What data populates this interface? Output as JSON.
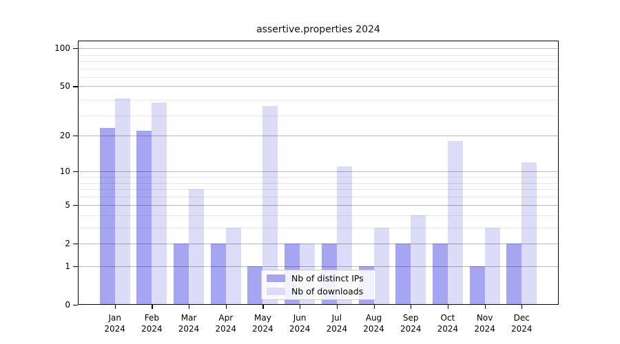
{
  "title": "assertive.properties 2024",
  "chart_data": {
    "type": "bar",
    "title": "assertive.properties 2024",
    "categories": [
      "Jan",
      "Feb",
      "Mar",
      "Apr",
      "May",
      "Jun",
      "Jul",
      "Aug",
      "Sep",
      "Oct",
      "Nov",
      "Dec"
    ],
    "year": "2024",
    "series": [
      {
        "name": "Nb of distinct IPs",
        "color": "#a5a5f2",
        "values": [
          23,
          22,
          2,
          2,
          1,
          2,
          2,
          1,
          2,
          2,
          1,
          2
        ]
      },
      {
        "name": "Nb of downloads",
        "color": "#dcdcf8",
        "values": [
          40,
          37,
          7,
          3,
          35,
          2,
          11,
          3,
          4,
          18,
          3,
          12
        ]
      }
    ],
    "y_scale": "log1p",
    "y_ticks": [
      0,
      1,
      2,
      5,
      10,
      20,
      50,
      100
    ],
    "y_minor_ticks": [
      3,
      4,
      6,
      7,
      8,
      9,
      29,
      39,
      59,
      69,
      79,
      89
    ],
    "ylim": [
      0,
      115
    ],
    "grid": true,
    "legend_position": "lower center",
    "background_color": "#ffffff"
  }
}
